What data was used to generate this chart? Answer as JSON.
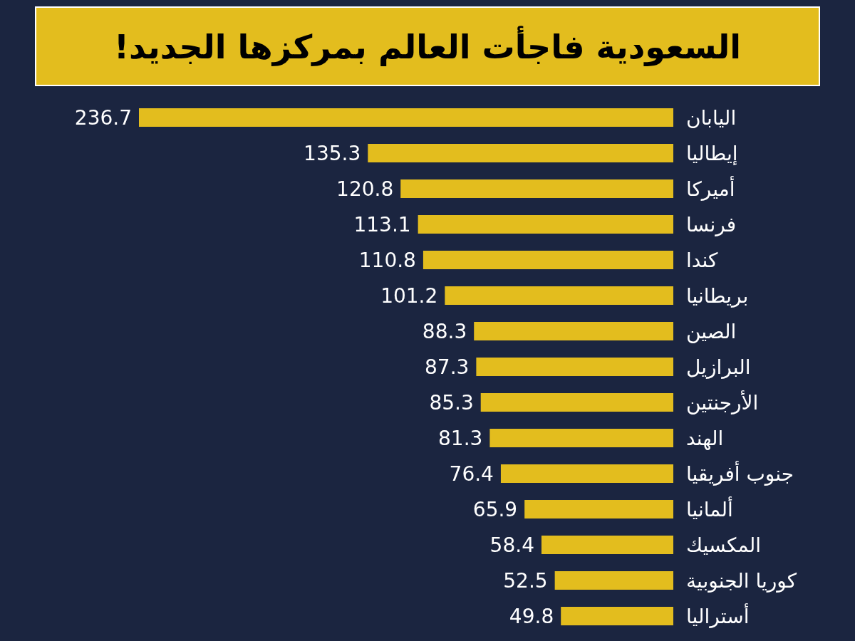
{
  "chart_data": {
    "type": "bar",
    "orientation": "horizontal",
    "title": "السعودية فاجأت العالم بمركزها الجديد!",
    "categories": [
      "اليابان",
      "إيطاليا",
      "أميركا",
      "فرنسا",
      "كندا",
      "بريطانيا",
      "الصين",
      "البرازيل",
      "الأرجنتين",
      "الهند",
      "جنوب أفريقيا",
      "ألمانيا",
      "المكسيك",
      "كوريا الجنوبية",
      "أستراليا"
    ],
    "values": [
      236.7,
      135.3,
      120.8,
      113.1,
      110.8,
      101.2,
      88.3,
      87.3,
      85.3,
      81.3,
      76.4,
      65.9,
      58.4,
      52.5,
      49.8
    ],
    "color": "#e3bd1e",
    "data_labels": true
  }
}
